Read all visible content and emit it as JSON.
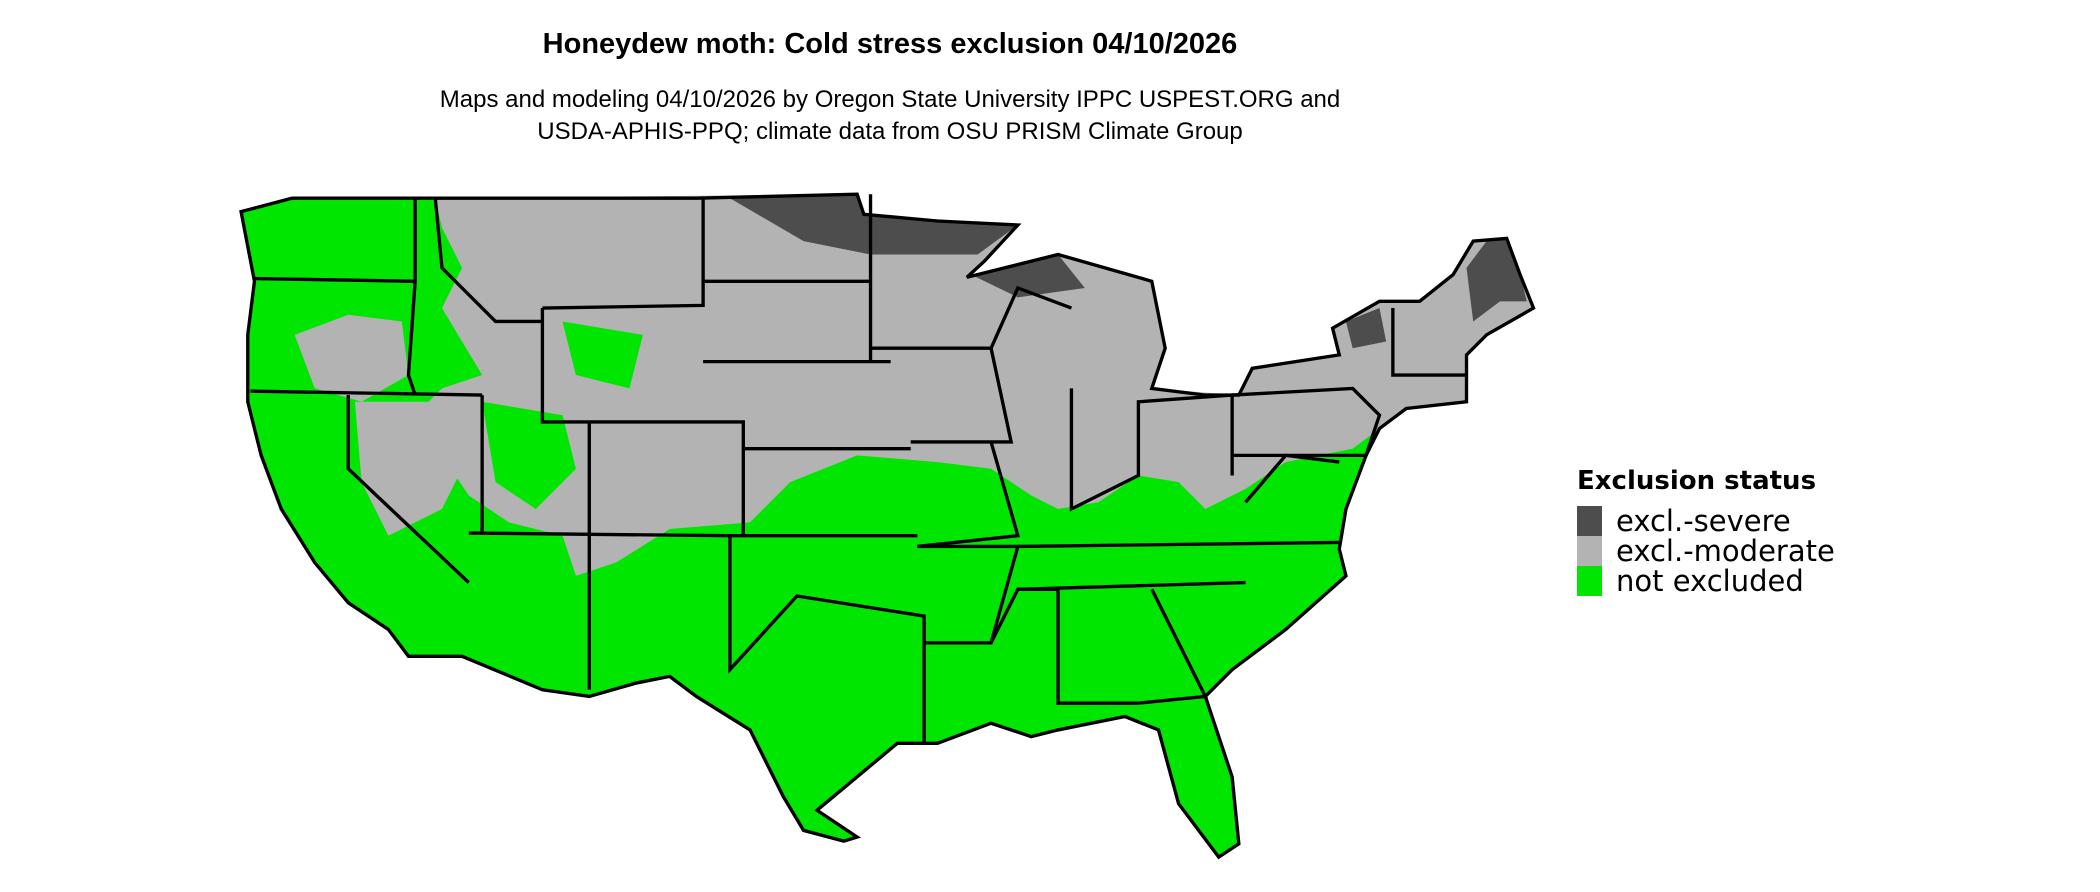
{
  "title": "Honeydew moth: Cold stress exclusion 04/10/2026",
  "subtitle_lines": [
    "Maps and modeling 04/10/2026 by Oregon State University IPPC USPEST.ORG and",
    "USDA-APHIS-PPQ; climate data from OSU PRISM Climate Group"
  ],
  "legend": {
    "title": "Exclusion status",
    "items": [
      {
        "label": "excl.-severe",
        "color": "#4d4d4d"
      },
      {
        "label": "excl.-moderate",
        "color": "#b3b3b3"
      },
      {
        "label": "not excluded",
        "color": "#00e600"
      }
    ]
  }
}
